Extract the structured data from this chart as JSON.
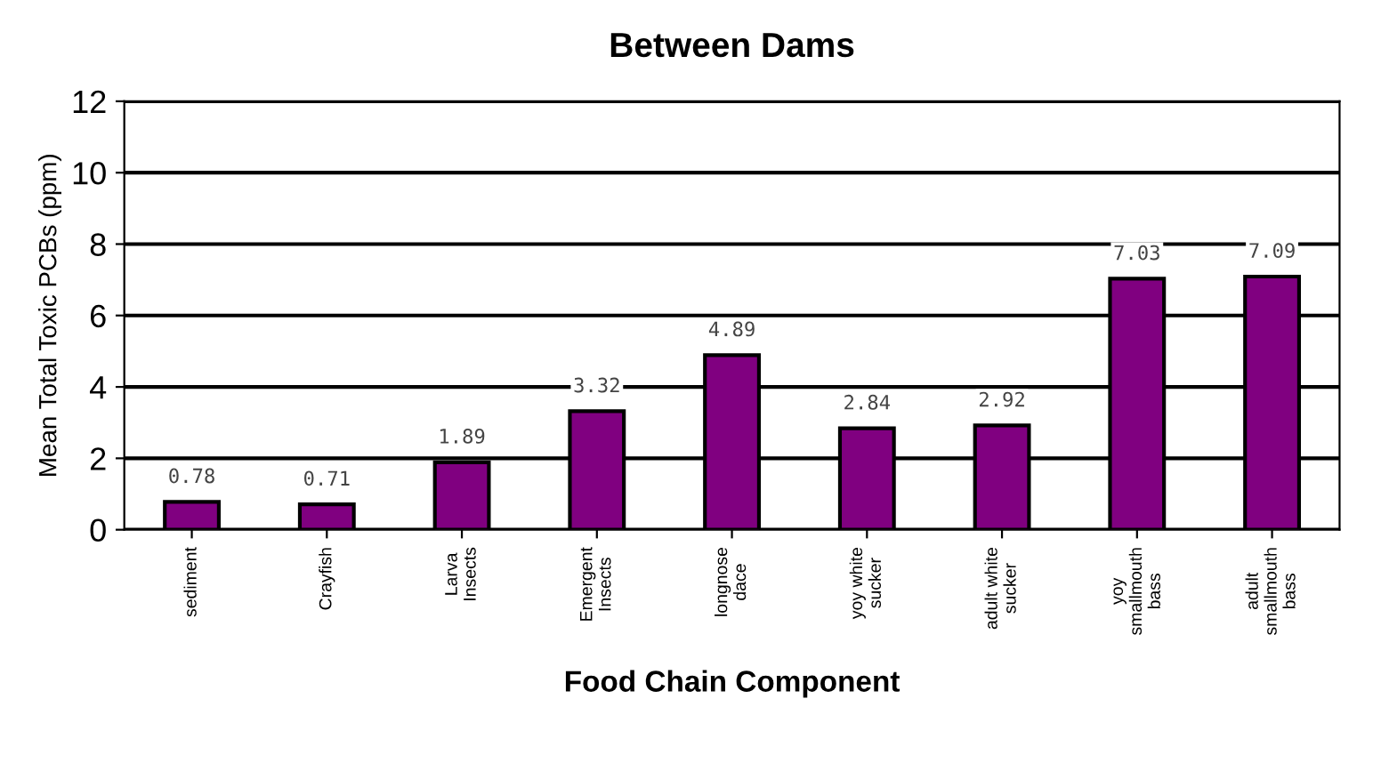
{
  "chart_data": {
    "type": "bar",
    "title": "Between Dams",
    "xlabel": "Food Chain Component",
    "ylabel": "Mean Total Toxic PCBs (ppm)",
    "categories": [
      "sediment",
      "Crayfish",
      "Larva\nInsects",
      "Emergent\nInsects",
      "longnose\ndace",
      "yoy white\nsucker",
      "adult white\nsucker",
      "yoy\nsmallmouth\nbass",
      "adult\nsmallmouth\nbass"
    ],
    "values": [
      0.78,
      0.71,
      1.89,
      3.32,
      4.89,
      2.84,
      2.92,
      7.03,
      7.09
    ],
    "color": "#800080",
    "ylim": [
      0,
      12
    ],
    "yticks": [
      0,
      2,
      4,
      6,
      8,
      10,
      12
    ],
    "grid": "y",
    "data_labels": true
  }
}
